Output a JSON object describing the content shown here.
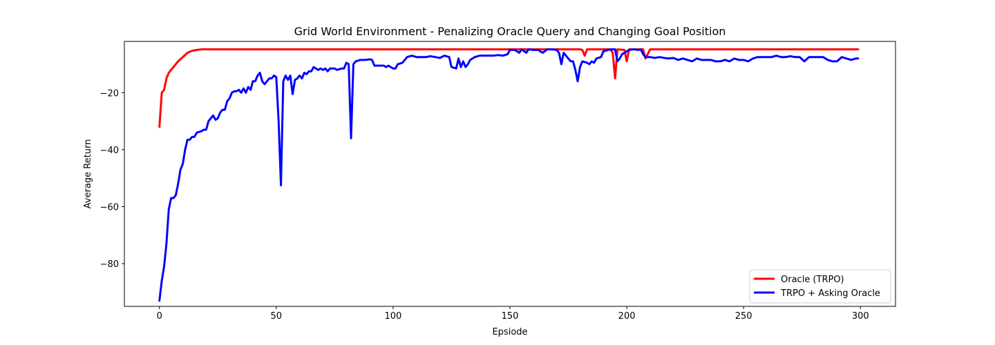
{
  "chart_data": {
    "type": "line",
    "title": "Grid World Environment - Penalizing Oracle Query and Changing Goal Position",
    "xlabel": "Epsiode",
    "ylabel": "Average Return",
    "xlim": [
      -15,
      315
    ],
    "ylim": [
      -95,
      -2
    ],
    "xticks": [
      0,
      50,
      100,
      150,
      200,
      250,
      300
    ],
    "yticks": [
      -20,
      -40,
      -60,
      -80
    ],
    "legend_position": "lower-right",
    "grid": false,
    "series": [
      {
        "name": "Oracle (TRPO)",
        "color": "#ff0000",
        "points": [
          [
            0,
            -32
          ],
          [
            1,
            -20
          ],
          [
            2,
            -19
          ],
          [
            3,
            -15
          ],
          [
            4,
            -13
          ],
          [
            5,
            -12
          ],
          [
            6,
            -11
          ],
          [
            8,
            -9
          ],
          [
            10,
            -7.5
          ],
          [
            12,
            -6
          ],
          [
            14,
            -5.3
          ],
          [
            16,
            -5
          ],
          [
            18,
            -4.8
          ],
          [
            25,
            -4.8
          ],
          [
            100,
            -4.8
          ],
          [
            150,
            -4.8
          ],
          [
            180,
            -4.8
          ],
          [
            181,
            -5
          ],
          [
            182,
            -7
          ],
          [
            183,
            -4.8
          ],
          [
            193,
            -4.8
          ],
          [
            194,
            -6
          ],
          [
            195,
            -15
          ],
          [
            196,
            -4.8
          ],
          [
            199,
            -5
          ],
          [
            200,
            -9
          ],
          [
            201,
            -4.8
          ],
          [
            207,
            -4.8
          ],
          [
            208,
            -8
          ],
          [
            210,
            -4.8
          ],
          [
            250,
            -4.8
          ],
          [
            299,
            -4.8
          ]
        ]
      },
      {
        "name": "TRPO + Asking Oracle",
        "color": "#0000ff",
        "points": [
          [
            0,
            -93
          ],
          [
            1,
            -86
          ],
          [
            2,
            -81
          ],
          [
            3,
            -73
          ],
          [
            4,
            -61
          ],
          [
            5,
            -57
          ],
          [
            6,
            -57
          ],
          [
            7,
            -56
          ],
          [
            8,
            -52
          ],
          [
            9,
            -47
          ],
          [
            10,
            -45
          ],
          [
            11,
            -40
          ],
          [
            12,
            -36.5
          ],
          [
            13,
            -36.5
          ],
          [
            14,
            -35.5
          ],
          [
            15,
            -35.5
          ],
          [
            16,
            -34
          ],
          [
            18,
            -33.5
          ],
          [
            19,
            -33
          ],
          [
            20,
            -33
          ],
          [
            21,
            -30
          ],
          [
            22,
            -29
          ],
          [
            23,
            -28
          ],
          [
            24,
            -29.5
          ],
          [
            25,
            -29
          ],
          [
            26,
            -27
          ],
          [
            27,
            -26
          ],
          [
            28,
            -26
          ],
          [
            29,
            -23
          ],
          [
            30,
            -22
          ],
          [
            31,
            -20
          ],
          [
            32,
            -19.5
          ],
          [
            33,
            -19.5
          ],
          [
            34,
            -19
          ],
          [
            35,
            -20
          ],
          [
            36,
            -18.5
          ],
          [
            37,
            -20
          ],
          [
            38,
            -18
          ],
          [
            39,
            -19
          ],
          [
            40,
            -16
          ],
          [
            41,
            -16
          ],
          [
            42,
            -14
          ],
          [
            43,
            -13
          ],
          [
            44,
            -16
          ],
          [
            45,
            -17
          ],
          [
            46,
            -16
          ],
          [
            47,
            -15
          ],
          [
            48,
            -15
          ],
          [
            49,
            -14
          ],
          [
            50,
            -14.5
          ],
          [
            51,
            -30
          ],
          [
            52,
            -52.5
          ],
          [
            53,
            -16
          ],
          [
            54,
            -14
          ],
          [
            55,
            -15.5
          ],
          [
            56,
            -14
          ],
          [
            57,
            -20.5
          ],
          [
            58,
            -15.5
          ],
          [
            59,
            -15
          ],
          [
            60,
            -14
          ],
          [
            61,
            -15
          ],
          [
            62,
            -13
          ],
          [
            63,
            -13.5
          ],
          [
            64,
            -12.5
          ],
          [
            65,
            -12.5
          ],
          [
            66,
            -11
          ],
          [
            67,
            -11.5
          ],
          [
            68,
            -12
          ],
          [
            69,
            -11.5
          ],
          [
            70,
            -12
          ],
          [
            71,
            -11.5
          ],
          [
            72,
            -12.5
          ],
          [
            73,
            -11.5
          ],
          [
            75,
            -11.5
          ],
          [
            76,
            -12
          ],
          [
            78,
            -11.5
          ],
          [
            79,
            -11.5
          ],
          [
            80,
            -9.5
          ],
          [
            81,
            -10
          ],
          [
            82,
            -36
          ],
          [
            83,
            -10
          ],
          [
            84,
            -9
          ],
          [
            86,
            -8.5
          ],
          [
            88,
            -8.5
          ],
          [
            90,
            -8.3
          ],
          [
            91,
            -8.5
          ],
          [
            92,
            -10.5
          ],
          [
            94,
            -10.5
          ],
          [
            96,
            -10.5
          ],
          [
            97,
            -11
          ],
          [
            98,
            -10.5
          ],
          [
            100,
            -11.5
          ],
          [
            101,
            -11.5
          ],
          [
            102,
            -10
          ],
          [
            104,
            -9.5
          ],
          [
            106,
            -7.5
          ],
          [
            108,
            -7
          ],
          [
            110,
            -7.5
          ],
          [
            112,
            -7.5
          ],
          [
            114,
            -7.5
          ],
          [
            116,
            -7.2
          ],
          [
            118,
            -7.5
          ],
          [
            120,
            -7.8
          ],
          [
            122,
            -7
          ],
          [
            124,
            -7.5
          ],
          [
            125,
            -11
          ],
          [
            127,
            -11.5
          ],
          [
            128,
            -8
          ],
          [
            129,
            -11
          ],
          [
            130,
            -9
          ],
          [
            131,
            -11
          ],
          [
            132,
            -10
          ],
          [
            133,
            -8.5
          ],
          [
            135,
            -7.5
          ],
          [
            137,
            -7
          ],
          [
            139,
            -7
          ],
          [
            141,
            -7
          ],
          [
            143,
            -7
          ],
          [
            145,
            -6.8
          ],
          [
            147,
            -7
          ],
          [
            149,
            -6.5
          ],
          [
            150,
            -5
          ],
          [
            152,
            -5
          ],
          [
            154,
            -6
          ],
          [
            155,
            -4.8
          ],
          [
            157,
            -6
          ],
          [
            158,
            -4.8
          ],
          [
            160,
            -5
          ],
          [
            162,
            -5
          ],
          [
            164,
            -6
          ],
          [
            166,
            -4.8
          ],
          [
            168,
            -4.8
          ],
          [
            170,
            -5
          ],
          [
            171,
            -6
          ],
          [
            172,
            -10
          ],
          [
            173,
            -6
          ],
          [
            175,
            -8
          ],
          [
            176,
            -9
          ],
          [
            177,
            -9
          ],
          [
            178,
            -12
          ],
          [
            179,
            -16
          ],
          [
            180,
            -11
          ],
          [
            181,
            -9
          ],
          [
            183,
            -9.5
          ],
          [
            184,
            -10
          ],
          [
            185,
            -9
          ],
          [
            186,
            -9.5
          ],
          [
            187,
            -8
          ],
          [
            189,
            -7.5
          ],
          [
            190,
            -5.5
          ],
          [
            192,
            -5
          ],
          [
            193,
            -4.8
          ],
          [
            195,
            -4.8
          ],
          [
            196,
            -9
          ],
          [
            197,
            -8
          ],
          [
            198,
            -6.5
          ],
          [
            200,
            -5.5
          ],
          [
            201,
            -5
          ],
          [
            203,
            -4.8
          ],
          [
            205,
            -5
          ],
          [
            206,
            -4.8
          ],
          [
            207,
            -6.5
          ],
          [
            208,
            -7.5
          ],
          [
            210,
            -7.5
          ],
          [
            212,
            -7.8
          ],
          [
            214,
            -7.5
          ],
          [
            216,
            -7.8
          ],
          [
            218,
            -8
          ],
          [
            220,
            -7.8
          ],
          [
            222,
            -8.5
          ],
          [
            224,
            -8
          ],
          [
            226,
            -8.5
          ],
          [
            228,
            -9
          ],
          [
            230,
            -8
          ],
          [
            232,
            -8.5
          ],
          [
            234,
            -8.5
          ],
          [
            236,
            -8.5
          ],
          [
            238,
            -9
          ],
          [
            240,
            -9
          ],
          [
            242,
            -8.5
          ],
          [
            244,
            -9
          ],
          [
            246,
            -8
          ],
          [
            248,
            -8.5
          ],
          [
            250,
            -8.5
          ],
          [
            252,
            -9
          ],
          [
            254,
            -8
          ],
          [
            256,
            -7.5
          ],
          [
            258,
            -7.5
          ],
          [
            260,
            -7.5
          ],
          [
            262,
            -7.5
          ],
          [
            264,
            -7
          ],
          [
            266,
            -7.5
          ],
          [
            268,
            -7.5
          ],
          [
            270,
            -7.2
          ],
          [
            272,
            -7.5
          ],
          [
            274,
            -7.5
          ],
          [
            276,
            -9
          ],
          [
            278,
            -7.5
          ],
          [
            280,
            -7.5
          ],
          [
            282,
            -7.5
          ],
          [
            284,
            -7.5
          ],
          [
            286,
            -8.5
          ],
          [
            288,
            -9
          ],
          [
            290,
            -9
          ],
          [
            292,
            -7.5
          ],
          [
            294,
            -8
          ],
          [
            296,
            -8.5
          ],
          [
            298,
            -8
          ],
          [
            299,
            -8
          ]
        ]
      }
    ]
  }
}
